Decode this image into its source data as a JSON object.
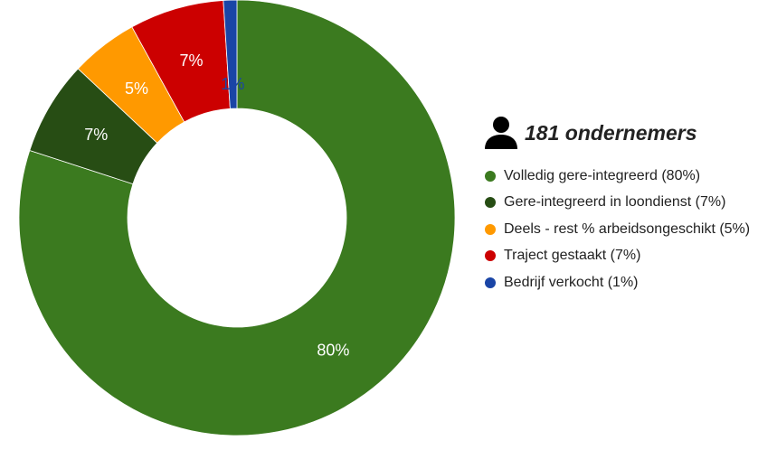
{
  "chart_data": {
    "type": "pie",
    "subtype": "donut",
    "categories": [
      "Volledig gere-integreerd",
      "Gere-integreerd in loondienst",
      "Deels - rest % arbeidsongeschikt",
      "Traject gestaakt",
      "Bedrijf verkocht"
    ],
    "values": [
      80,
      7,
      5,
      7,
      1
    ],
    "unit": "%",
    "slice_labels": [
      "80%",
      "7%",
      "5%",
      "7%",
      "1%"
    ],
    "colors": [
      "#3b7a1f",
      "#274d14",
      "#ff9900",
      "#cc0000",
      "#1a45a6"
    ],
    "label_colors": [
      "#ffffff",
      "#ffffff",
      "#ffffff",
      "#ffffff",
      "#1a45a6"
    ],
    "legend": {
      "position": "right",
      "header": "181 ondernemers",
      "header_icon": "person-icon",
      "items": [
        "Volledig gere-integreerd (80%)",
        "Gere-integreerd in loondienst (7%)",
        "Deels - rest % arbeidsongeschikt (5%)",
        "Traject gestaakt (7%)",
        "Bedrijf verkocht (1%)"
      ]
    }
  }
}
